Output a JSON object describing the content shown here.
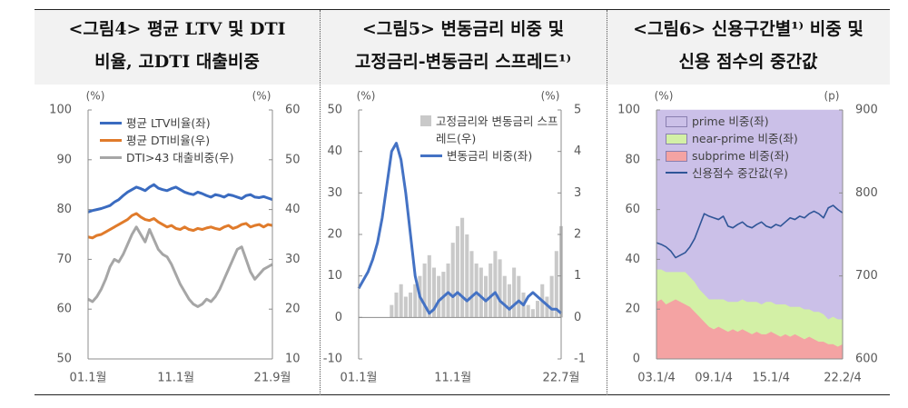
{
  "chart_data": [
    {
      "type": "line",
      "title": [
        "<그림4> 평균 LTV 및 DTI",
        "비율, 고DTI 대출비중"
      ],
      "y_unit": "(%)",
      "y2_unit": "(%)",
      "categories": [
        "01.1월",
        null,
        null,
        null,
        null,
        null,
        null,
        null,
        null,
        null,
        null,
        null,
        null,
        null,
        null,
        null,
        null,
        null,
        null,
        null,
        "11.1월",
        null,
        null,
        null,
        null,
        null,
        null,
        null,
        null,
        null,
        null,
        null,
        null,
        null,
        null,
        null,
        null,
        null,
        null,
        null,
        null,
        null,
        "21.9월"
      ],
      "ylim": [
        50,
        100
      ],
      "yticks": [
        50,
        60,
        70,
        80,
        90,
        100
      ],
      "y2lim": [
        10,
        60
      ],
      "y2ticks": [
        10,
        20,
        30,
        40,
        50,
        60
      ],
      "series": [
        {
          "name": "평균 LTV비율(좌)",
          "color": "#3a6bc0",
          "kind": "line",
          "values": [
            79.5,
            79.8,
            80.0,
            80.2,
            80.5,
            80.8,
            81.5,
            82.0,
            82.8,
            83.5,
            84.0,
            84.5,
            84.2,
            83.8,
            84.5,
            85.0,
            84.3,
            84.0,
            83.8,
            84.2,
            84.5,
            84.0,
            83.5,
            83.2,
            83.0,
            83.5,
            83.2,
            82.8,
            82.5,
            83.0,
            82.8,
            82.5,
            83.0,
            82.8,
            82.5,
            82.2,
            82.8,
            83.0,
            82.5,
            82.4,
            82.6,
            82.3,
            82.0
          ]
        },
        {
          "name": "평균 DTI비율(우)",
          "color": "#e07b2b",
          "kind": "line",
          "axis": "y2",
          "values": [
            34.5,
            34.3,
            34.8,
            35.0,
            35.5,
            36.0,
            36.5,
            37.0,
            37.5,
            38.0,
            38.8,
            39.2,
            38.5,
            38.0,
            37.8,
            38.2,
            37.5,
            37.0,
            36.5,
            36.8,
            36.2,
            36.0,
            36.5,
            36.0,
            35.8,
            36.2,
            36.0,
            36.3,
            36.5,
            36.2,
            36.0,
            36.5,
            36.8,
            36.2,
            36.5,
            37.0,
            37.2,
            36.5,
            36.8,
            37.0,
            36.5,
            37.0,
            36.8
          ]
        },
        {
          "name": "DTI>43 대출비중(우)",
          "color": "#a6a6a6",
          "kind": "line",
          "axis": "y2",
          "values": [
            22.0,
            21.5,
            22.5,
            24.0,
            26.0,
            28.5,
            30.0,
            29.5,
            31.0,
            33.0,
            35.0,
            36.5,
            35.0,
            33.5,
            36.0,
            34.0,
            32.0,
            31.0,
            30.5,
            29.0,
            27.0,
            25.0,
            23.5,
            22.0,
            21.0,
            20.5,
            21.0,
            22.0,
            21.5,
            22.5,
            24.0,
            26.0,
            28.0,
            30.0,
            32.0,
            32.5,
            30.0,
            27.5,
            26.0,
            27.0,
            28.0,
            28.5,
            29.0
          ]
        }
      ]
    },
    {
      "type": "combo",
      "title": [
        "<그림5> 변동금리 비중 및",
        "고정금리-변동금리 스프레드¹⁾"
      ],
      "y_unit": "(%)",
      "y2_unit": "(%)",
      "categories": [
        "01.1월",
        null,
        null,
        null,
        null,
        null,
        null,
        null,
        null,
        null,
        null,
        null,
        null,
        null,
        null,
        null,
        null,
        null,
        null,
        null,
        "11.1월",
        null,
        null,
        null,
        null,
        null,
        null,
        null,
        null,
        null,
        null,
        null,
        null,
        null,
        null,
        null,
        null,
        null,
        null,
        null,
        null,
        null,
        null,
        "22.7월"
      ],
      "ylim": [
        -10,
        50
      ],
      "yticks": [
        -10,
        0,
        10,
        20,
        30,
        40,
        50
      ],
      "y2lim": [
        -1,
        5
      ],
      "y2ticks": [
        -1,
        0,
        1,
        2,
        3,
        4,
        5
      ],
      "series": [
        {
          "name": "고정금리와 변동금리 스프레드(우)",
          "color": "#c9c9c9",
          "kind": "bar",
          "axis": "y2",
          "values": [
            0,
            0,
            0,
            0,
            0,
            0,
            0,
            0.3,
            0.6,
            0.8,
            0.5,
            0.6,
            0.8,
            1.0,
            1.3,
            1.5,
            1.2,
            1.0,
            1.1,
            1.3,
            1.8,
            2.2,
            2.4,
            2.0,
            1.6,
            1.3,
            1.2,
            1.0,
            1.3,
            1.6,
            1.4,
            1.0,
            0.8,
            1.2,
            1.0,
            0.6,
            0.3,
            0.2,
            0.4,
            0.8,
            0.5,
            1.0,
            1.6,
            2.2
          ]
        },
        {
          "name": "변동금리 비중(좌)",
          "color": "#4472c4",
          "kind": "line",
          "values": [
            7,
            9,
            11,
            14,
            18,
            24,
            32,
            40,
            42,
            38,
            30,
            20,
            10,
            5,
            3,
            1,
            2,
            4,
            5,
            6,
            5,
            6,
            5,
            4,
            5,
            6,
            5,
            4,
            5,
            6,
            4,
            3,
            2,
            3,
            4,
            3,
            5,
            6,
            5,
            4,
            3,
            2,
            2,
            1
          ]
        }
      ]
    },
    {
      "type": "area",
      "title": [
        "<그림6> 신용구간별¹⁾ 비중 및",
        "신용 점수의 중간값"
      ],
      "y_unit": "(%)",
      "y2_unit": "(p)",
      "categories": [
        "03.1/4",
        null,
        null,
        null,
        null,
        null,
        null,
        null,
        null,
        null,
        null,
        null,
        "09.1/4",
        null,
        null,
        null,
        null,
        null,
        null,
        null,
        null,
        null,
        null,
        null,
        "15.1/4",
        null,
        null,
        null,
        null,
        null,
        null,
        null,
        null,
        null,
        null,
        null,
        null,
        null,
        null,
        "22.2/4"
      ],
      "ylim": [
        0,
        100
      ],
      "yticks": [
        0,
        20,
        40,
        60,
        80,
        100
      ],
      "y2lim": [
        600,
        900
      ],
      "y2ticks": [
        600,
        700,
        800,
        900
      ],
      "series": [
        {
          "name": "prime 비중(좌)",
          "color": "#cbc0e8",
          "kind": "area",
          "values": [
            64,
            64,
            65,
            65,
            65,
            65,
            65,
            67,
            69,
            72,
            74,
            76,
            76,
            76,
            76,
            77,
            77,
            77,
            76,
            77,
            77,
            77,
            78,
            77,
            77,
            78,
            78,
            78,
            79,
            79,
            79,
            80,
            80,
            81,
            81,
            82,
            84,
            83,
            84,
            84
          ]
        },
        {
          "name": "near-prime 비중(좌)",
          "color": "#d3f0a6",
          "kind": "area",
          "values": [
            13,
            12,
            13,
            12,
            11,
            12,
            13,
            12,
            12,
            11,
            11,
            11,
            12,
            11,
            12,
            12,
            11,
            12,
            12,
            12,
            13,
            12,
            12,
            13,
            12,
            12,
            13,
            12,
            12,
            11,
            12,
            12,
            11,
            11,
            12,
            11,
            10,
            11,
            11,
            10
          ]
        },
        {
          "name": "subprime 비중(좌)",
          "color": "#f4a3a3",
          "kind": "area",
          "values": [
            23,
            24,
            22,
            23,
            24,
            23,
            22,
            21,
            19,
            17,
            15,
            13,
            12,
            13,
            12,
            11,
            12,
            11,
            12,
            11,
            10,
            11,
            10,
            10,
            11,
            10,
            9,
            10,
            9,
            10,
            9,
            8,
            9,
            8,
            7,
            7,
            6,
            6,
            5,
            6
          ]
        },
        {
          "name": "신용점수 중간값(우)",
          "color": "#2f5597",
          "kind": "line",
          "axis": "y2",
          "values": [
            740,
            738,
            735,
            730,
            722,
            725,
            728,
            735,
            745,
            760,
            775,
            772,
            770,
            768,
            772,
            760,
            758,
            762,
            765,
            760,
            758,
            762,
            765,
            760,
            758,
            762,
            760,
            765,
            770,
            768,
            772,
            770,
            775,
            778,
            775,
            770,
            782,
            785,
            780,
            776
          ]
        }
      ]
    }
  ]
}
